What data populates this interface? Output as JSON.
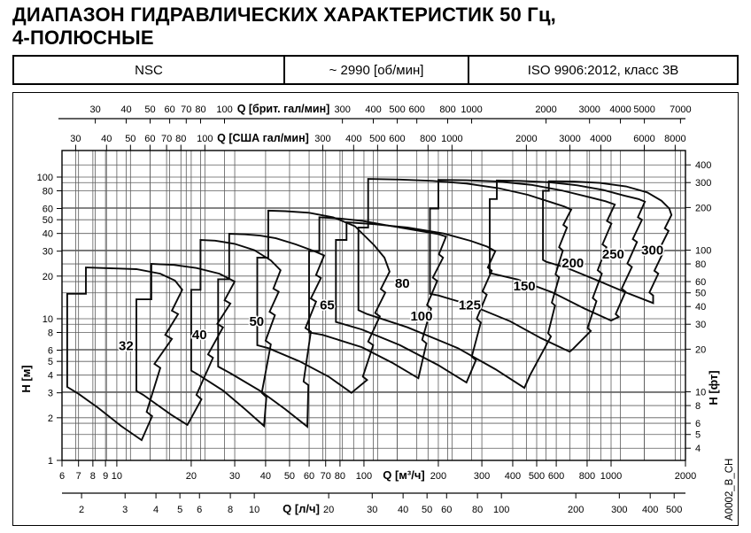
{
  "doc": {
    "title_line1": "ДИАПАЗОН ГИДРАВЛИЧЕСКИХ ХАРАКТЕРИСТИК 50 Гц,",
    "title_line2": "4-ПОЛЮСНЫЕ",
    "header": {
      "series_name": "NSC",
      "speed": "~ 2990 [об/мин]",
      "standard": "ISO 9906:2012, класс 3В"
    },
    "side_code": "A0002_B_CH"
  },
  "chart_data": {
    "type": "area",
    "subtype": "log-log pump range envelopes",
    "title": "ДИАПАЗОН ГИДРАВЛИЧЕСКИХ ХАРАКТЕРИСТИК 50 Гц, 4-ПОЛЮСНЫЕ",
    "grid": "on",
    "x_range_m3h": [
      6,
      2000
    ],
    "y_range_m": [
      1,
      154.9
    ],
    "x_axes": [
      {
        "id": "brit",
        "label": "Q [брит. гал/мин]",
        "position": "top-outer",
        "unit_to_m3h": 0.272766,
        "ticks": [
          30,
          40,
          50,
          60,
          70,
          80,
          100,
          300,
          400,
          500,
          600,
          800,
          1000,
          2000,
          3000,
          4000,
          5000,
          7000
        ]
      },
      {
        "id": "usa",
        "label": "Q [США гал/мин]",
        "position": "top-inner",
        "unit_to_m3h": 0.227125,
        "ticks": [
          30,
          40,
          50,
          60,
          70,
          80,
          100,
          300,
          400,
          500,
          600,
          800,
          1000,
          2000,
          3000,
          4000,
          6000,
          8000
        ]
      },
      {
        "id": "m3h",
        "label": "Q [м³/ч]",
        "position": "bottom-inner",
        "unit_to_m3h": 1,
        "ticks": [
          6,
          7,
          8,
          9,
          10,
          20,
          30,
          40,
          50,
          60,
          70,
          80,
          100,
          200,
          300,
          400,
          500,
          600,
          800,
          1000,
          2000
        ]
      },
      {
        "id": "ls",
        "label": "Q [л/ч]",
        "position": "bottom-outer",
        "unit_to_m3h": 3.6,
        "ticks": [
          2,
          3,
          4,
          5,
          6,
          8,
          10,
          20,
          30,
          40,
          50,
          60,
          80,
          100,
          200,
          300,
          400,
          500
        ]
      }
    ],
    "y_axes": [
      {
        "id": "m",
        "label": "H [м]",
        "position": "left",
        "unit_to_m": 1,
        "ticks": [
          1,
          2,
          3,
          4,
          5,
          6,
          8,
          10,
          20,
          30,
          40,
          50,
          60,
          80,
          100
        ]
      },
      {
        "id": "ft",
        "label": "H [фт]",
        "position": "right",
        "unit_to_m": 0.3048,
        "ticks": [
          4,
          5,
          6,
          8,
          10,
          20,
          30,
          40,
          50,
          60,
          80,
          100,
          200,
          300,
          400
        ]
      }
    ],
    "envelopes": [
      {
        "label": "32",
        "label_pos": [
          10.9,
          6.0
        ],
        "points": [
          [
            6.3,
            3.3
          ],
          [
            6.3,
            15
          ],
          [
            7.5,
            15
          ],
          [
            7.5,
            23
          ],
          [
            12,
            22.4
          ],
          [
            15,
            20.8
          ],
          [
            17.2,
            18.6
          ],
          [
            18.4,
            16
          ],
          [
            16.7,
            11.4
          ],
          [
            17.7,
            10.8
          ],
          [
            15.7,
            7.7
          ],
          [
            16.7,
            7.2
          ],
          [
            14.2,
            4.8
          ],
          [
            15,
            4.5
          ],
          [
            13.2,
            2.2
          ],
          [
            13.9,
            2.05
          ],
          [
            12.6,
            1.39
          ],
          [
            10.4,
            1.75
          ],
          [
            8.4,
            2.35
          ],
          [
            7,
            2.95
          ]
        ]
      },
      {
        "label": "40",
        "label_pos": [
          21.6,
          7.2
        ],
        "points": [
          [
            12,
            3.1
          ],
          [
            12,
            13.7
          ],
          [
            13.8,
            13.7
          ],
          [
            13.8,
            24.4
          ],
          [
            17,
            24
          ],
          [
            21,
            22.8
          ],
          [
            26,
            20.8
          ],
          [
            30,
            18.3
          ],
          [
            27.3,
            13.5
          ],
          [
            28.8,
            12.8
          ],
          [
            25.5,
            9.2
          ],
          [
            26.9,
            8.7
          ],
          [
            23.4,
            5.6
          ],
          [
            24.5,
            5.3
          ],
          [
            21,
            2.9
          ],
          [
            22,
            2.7
          ],
          [
            19.3,
            1.78
          ],
          [
            16.6,
            2.1
          ],
          [
            14.2,
            2.55
          ],
          [
            12.8,
            2.9
          ]
        ]
      },
      {
        "label": "50",
        "label_pos": [
          36.8,
          8.9
        ],
        "points": [
          [
            20,
            4.3
          ],
          [
            20,
            16
          ],
          [
            21.8,
            16
          ],
          [
            21.8,
            36
          ],
          [
            25,
            35.6
          ],
          [
            30,
            33.8
          ],
          [
            36,
            30.5
          ],
          [
            42,
            25.8
          ],
          [
            46,
            22
          ],
          [
            43,
            16.3
          ],
          [
            45.2,
            15.5
          ],
          [
            41.5,
            11.2
          ],
          [
            43.6,
            10.6
          ],
          [
            40,
            7
          ],
          [
            42,
            6.6
          ],
          [
            38.6,
            3
          ],
          [
            40.3,
            2.8
          ],
          [
            39.4,
            1.75
          ],
          [
            33,
            2.3
          ],
          [
            27,
            3.1
          ],
          [
            21.5,
            4
          ]
        ]
      },
      {
        "label": "65",
        "label_pos": [
          71,
          11.6
        ],
        "points": [
          [
            25.7,
            4.6
          ],
          [
            25.7,
            19
          ],
          [
            28.5,
            19
          ],
          [
            28.5,
            39.8
          ],
          [
            33,
            39.4
          ],
          [
            38,
            38.6
          ],
          [
            44,
            37
          ],
          [
            53,
            33.5
          ],
          [
            63,
            30
          ],
          [
            69,
            28
          ],
          [
            64,
            20.4
          ],
          [
            67,
            19.4
          ],
          [
            61,
            13.9
          ],
          [
            64,
            13.2
          ],
          [
            58,
            8.6
          ],
          [
            61,
            8.1
          ],
          [
            57,
            3.6
          ],
          [
            59.6,
            3.4
          ],
          [
            59,
            1.73
          ],
          [
            48,
            2.3
          ],
          [
            38,
            3.1
          ],
          [
            29,
            4.1
          ]
        ]
      },
      {
        "label": "80",
        "label_pos": [
          143,
          16.6
        ],
        "points": [
          [
            37,
            6.5
          ],
          [
            37,
            27
          ],
          [
            41,
            27
          ],
          [
            41,
            58
          ],
          [
            48,
            57.5
          ],
          [
            60,
            56
          ],
          [
            75,
            52
          ],
          [
            92,
            45
          ],
          [
            110,
            33
          ],
          [
            121,
            27
          ],
          [
            127,
            21.5
          ],
          [
            117,
            16.2
          ],
          [
            122,
            15.3
          ],
          [
            111,
            11
          ],
          [
            116,
            10.4
          ],
          [
            104,
            6.9
          ],
          [
            109,
            6.5
          ],
          [
            99,
            3.9
          ],
          [
            103,
            3.7
          ],
          [
            89,
            3
          ],
          [
            72,
            3.9
          ],
          [
            55,
            5
          ],
          [
            41,
            6.2
          ]
        ]
      },
      {
        "label": "100",
        "label_pos": [
          171,
          9.7
        ],
        "points": [
          [
            60,
            8
          ],
          [
            60,
            30
          ],
          [
            66,
            30
          ],
          [
            66,
            52
          ],
          [
            80,
            51
          ],
          [
            99,
            49
          ],
          [
            130,
            45
          ],
          [
            170,
            41.5
          ],
          [
            200,
            39.5
          ],
          [
            215,
            38
          ],
          [
            201,
            28.5
          ],
          [
            209,
            27
          ],
          [
            190,
            19.5
          ],
          [
            198,
            18.5
          ],
          [
            180,
            12.5
          ],
          [
            187,
            11.8
          ],
          [
            172,
            7.1
          ],
          [
            179,
            6.7
          ],
          [
            166,
            3.8
          ],
          [
            130,
            4.9
          ],
          [
            98,
            6.3
          ],
          [
            68,
            7.7
          ]
        ]
      },
      {
        "label": "125",
        "label_pos": [
          268,
          11.6
        ],
        "points": [
          [
            77,
            9.5
          ],
          [
            77,
            36
          ],
          [
            85,
            36
          ],
          [
            85,
            48
          ],
          [
            110,
            46.5
          ],
          [
            150,
            44
          ],
          [
            210,
            40
          ],
          [
            270,
            35.5
          ],
          [
            315,
            32.3
          ],
          [
            340,
            30
          ],
          [
            317,
            23
          ],
          [
            329,
            21.8
          ],
          [
            302,
            15.6
          ],
          [
            314,
            14.8
          ],
          [
            286,
            10
          ],
          [
            297,
            9.4
          ],
          [
            273,
            5.4
          ],
          [
            284,
            5.1
          ],
          [
            260,
            3.55
          ],
          [
            200,
            4.7
          ],
          [
            140,
            6.5
          ],
          [
            98,
            8.4
          ]
        ]
      },
      {
        "label": "150",
        "label_pos": [
          446,
          15.9
        ],
        "points": [
          [
            95,
            11.5
          ],
          [
            95,
            44
          ],
          [
            104,
            44
          ],
          [
            104,
            97
          ],
          [
            140,
            96
          ],
          [
            190,
            94
          ],
          [
            260,
            90
          ],
          [
            350,
            83.5
          ],
          [
            460,
            75
          ],
          [
            570,
            66.5
          ],
          [
            645,
            62
          ],
          [
            690,
            59
          ],
          [
            641,
            46
          ],
          [
            663,
            44
          ],
          [
            616,
            32
          ],
          [
            638,
            30.3
          ],
          [
            596,
            20.6
          ],
          [
            616,
            19.6
          ],
          [
            576,
            13
          ],
          [
            593,
            12.4
          ],
          [
            556,
            7.9
          ],
          [
            571,
            7.5
          ],
          [
            470,
            4
          ],
          [
            446,
            3.25
          ],
          [
            340,
            4.4
          ],
          [
            240,
            6.2
          ],
          [
            150,
            8.7
          ],
          [
            103,
            10.8
          ]
        ]
      },
      {
        "label": "200",
        "label_pos": [
          700,
          23
        ],
        "points": [
          [
            185,
            15
          ],
          [
            185,
            60
          ],
          [
            200,
            60
          ],
          [
            200,
            95.5
          ],
          [
            260,
            95
          ],
          [
            350,
            93
          ],
          [
            480,
            88
          ],
          [
            640,
            80
          ],
          [
            820,
            72
          ],
          [
            950,
            67.5
          ],
          [
            1035,
            64
          ],
          [
            963,
            49
          ],
          [
            1003,
            47
          ],
          [
            923,
            33.5
          ],
          [
            958,
            32
          ],
          [
            883,
            22
          ],
          [
            918,
            20.8
          ],
          [
            843,
            14
          ],
          [
            873,
            13.3
          ],
          [
            803,
            8.6
          ],
          [
            828,
            8.2
          ],
          [
            700,
            6.1
          ],
          [
            680,
            5.85
          ],
          [
            520,
            7.3
          ],
          [
            390,
            9.6
          ],
          [
            270,
            12.5
          ],
          [
            200,
            14.6
          ]
        ]
      },
      {
        "label": "250",
        "label_pos": [
          1020,
          26.7
        ],
        "points": [
          [
            323,
            21
          ],
          [
            323,
            70
          ],
          [
            345,
            70
          ],
          [
            345,
            94.5
          ],
          [
            430,
            94
          ],
          [
            560,
            92
          ],
          [
            730,
            87.5
          ],
          [
            930,
            81
          ],
          [
            1130,
            74
          ],
          [
            1290,
            70
          ],
          [
            1370,
            67
          ],
          [
            1284,
            52
          ],
          [
            1334,
            50
          ],
          [
            1224,
            36.5
          ],
          [
            1274,
            34.8
          ],
          [
            1164,
            24.5
          ],
          [
            1214,
            23.2
          ],
          [
            1104,
            16.3
          ],
          [
            1144,
            15.5
          ],
          [
            1044,
            10.8
          ],
          [
            1074,
            10.3
          ],
          [
            1000,
            9.7
          ],
          [
            780,
            11.8
          ],
          [
            580,
            15.3
          ],
          [
            420,
            18.9
          ],
          [
            335,
            20.7
          ]
        ]
      },
      {
        "label": "300",
        "label_pos": [
          1470,
          28.3
        ],
        "points": [
          [
            530,
            26
          ],
          [
            530,
            80
          ],
          [
            560,
            80
          ],
          [
            560,
            93.5
          ],
          [
            700,
            93
          ],
          [
            900,
            91
          ],
          [
            1150,
            86
          ],
          [
            1400,
            78
          ],
          [
            1600,
            68
          ],
          [
            1720,
            60
          ],
          [
            1755,
            54
          ],
          [
            1650,
            43.5
          ],
          [
            1708,
            41.7
          ],
          [
            1572,
            31.2
          ],
          [
            1630,
            29.7
          ],
          [
            1497,
            21.8
          ],
          [
            1553,
            20.8
          ],
          [
            1430,
            15.3
          ],
          [
            1480,
            14.6
          ],
          [
            1480,
            12.9
          ],
          [
            1150,
            15.3
          ],
          [
            870,
            18.8
          ],
          [
            660,
            22.9
          ],
          [
            545,
            25.3
          ]
        ]
      }
    ],
    "colors": {
      "curve": "#0a0a0a",
      "grid": "#5c5c5c",
      "border": "#000000",
      "text": "#000000"
    }
  }
}
